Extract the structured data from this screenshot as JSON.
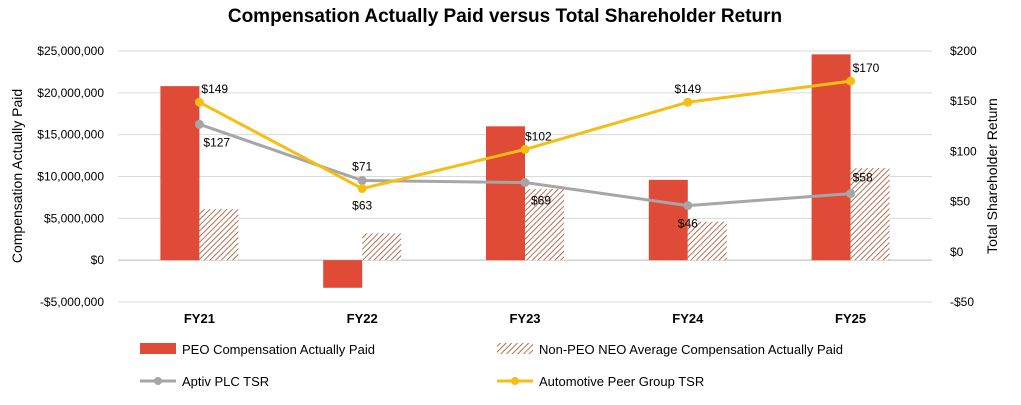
{
  "chart_data": {
    "type": "bar",
    "title": "Compensation Actually Paid versus Total Shareholder Return",
    "categories": [
      "FY21",
      "FY22",
      "FY23",
      "FY24",
      "FY25"
    ],
    "ylabel": "Compensation Actually Paid",
    "ylabel_right": "Total Shareholder Return",
    "ylim": [
      -5000000,
      25000000
    ],
    "ylim_right": [
      -50,
      200
    ],
    "yticks": [
      -5000000,
      0,
      5000000,
      10000000,
      15000000,
      20000000,
      25000000
    ],
    "yticks_labels": [
      "-$5,000,000",
      "$0",
      "$5,000,000",
      "$10,000,000",
      "$15,000,000",
      "$20,000,000",
      "$25,000,000"
    ],
    "yticks_right": [
      -50,
      0,
      50,
      100,
      150,
      200
    ],
    "yticks_right_labels": [
      "-$50",
      "$0",
      "$50",
      "$100",
      "$150",
      "$200"
    ],
    "grid": true,
    "legend_position": "bottom",
    "series": [
      {
        "name": "PEO Compensation Actually Paid",
        "kind": "bar",
        "axis": "left",
        "color": "#E04B37",
        "values": [
          20800000,
          -3300000,
          16000000,
          9600000,
          24600000
        ]
      },
      {
        "name": "Non-PEO NEO Average Compensation Actually Paid",
        "kind": "bar-hatched",
        "axis": "left",
        "color": "#A0522D",
        "values": [
          6100000,
          3200000,
          8500000,
          4600000,
          11000000
        ]
      },
      {
        "name": "Aptiv PLC TSR",
        "kind": "line",
        "axis": "right",
        "color": "#A6A6A6",
        "values": [
          127,
          71,
          69,
          46,
          58
        ],
        "labels": [
          "$127",
          "$71",
          "$69",
          "$46",
          "$58"
        ]
      },
      {
        "name": "Automotive Peer Group TSR",
        "kind": "line",
        "axis": "right",
        "color": "#F5BE14",
        "values": [
          149,
          63,
          102,
          149,
          170
        ],
        "labels": [
          "$149",
          "$63",
          "$102",
          "$149",
          "$170"
        ]
      }
    ]
  }
}
